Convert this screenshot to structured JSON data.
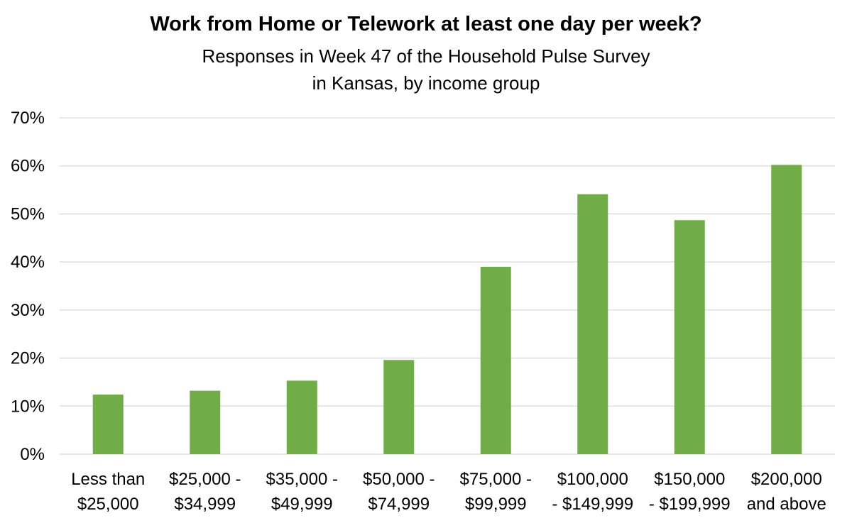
{
  "chart_data": {
    "type": "bar",
    "title": "Work from Home or Telework at least one day per week?",
    "subtitle": [
      "Responses in Week 47 of the Household Pulse Survey",
      "in Kansas, by income group"
    ],
    "categories": [
      [
        "Less than",
        "$25,000"
      ],
      [
        "$25,000 -",
        "$34,999"
      ],
      [
        "$35,000 -",
        "$49,999"
      ],
      [
        "$50,000 -",
        "$74,999"
      ],
      [
        "$75,000 -",
        "$99,999"
      ],
      [
        "$100,000",
        "- $149,999"
      ],
      [
        "$150,000",
        "- $199,999"
      ],
      [
        "$200,000",
        "and above"
      ]
    ],
    "values": [
      12.4,
      13.2,
      15.3,
      19.6,
      39.0,
      54.1,
      48.7,
      60.2
    ],
    "ylim": [
      0,
      70
    ],
    "yticks": [
      "0%",
      "10%",
      "20%",
      "30%",
      "40%",
      "50%",
      "60%",
      "70%"
    ],
    "xlabel": "",
    "ylabel": "",
    "grid": true,
    "legend": "none",
    "bar_color": "#70ad47",
    "grid_color": "#d9d9d9"
  }
}
